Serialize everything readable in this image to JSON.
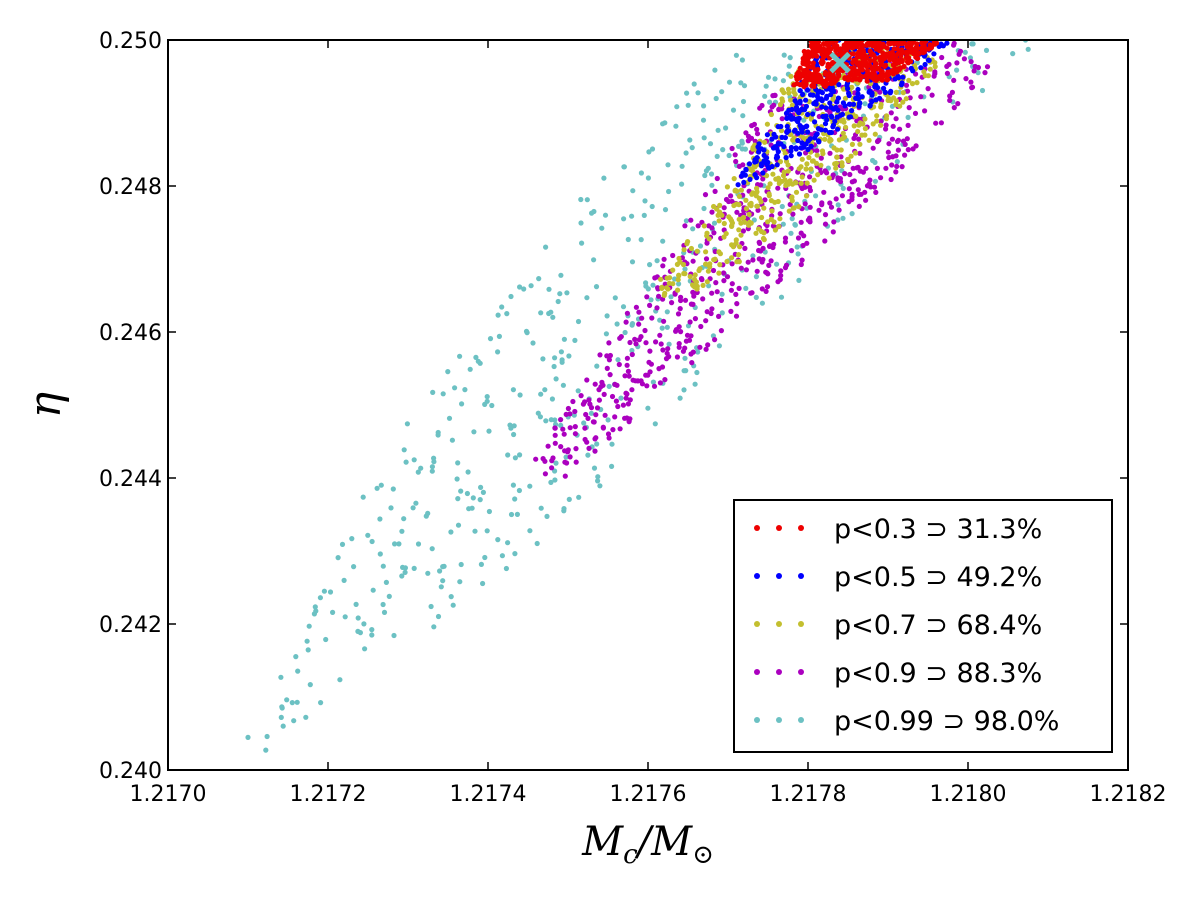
{
  "chart_data": {
    "type": "scatter",
    "title": "",
    "xlabel": "M_c/M_⊙",
    "ylabel": "η",
    "xlabel_parts": {
      "main": "M",
      "sub1": "c",
      "sep": "/M",
      "sub2": "⊙"
    },
    "xlim": [
      1.217,
      1.2182
    ],
    "ylim": [
      0.24,
      0.25
    ],
    "xticks": [
      1.217,
      1.2172,
      1.2174,
      1.2176,
      1.2178,
      1.218,
      1.2182
    ],
    "xtick_labels": [
      "1.2170",
      "1.2172",
      "1.2174",
      "1.2176",
      "1.2178",
      "1.2180",
      "1.2182"
    ],
    "yticks": [
      0.24,
      0.242,
      0.244,
      0.246,
      0.248,
      0.25
    ],
    "ytick_labels": [
      "0.240",
      "0.242",
      "0.244",
      "0.246",
      "0.248",
      "0.250"
    ],
    "grid": false,
    "legend_position": "bottom-right",
    "true_value": {
      "x": 1.21784,
      "y": 0.24969,
      "marker": "x",
      "color": "#6cc5c5"
    },
    "series": [
      {
        "name": "p<0.99",
        "legend_label": "p<0.99 ⊃ 98.0%",
        "percent": 98.0,
        "color": "#6cc1c3",
        "region": {
          "outer": [
            [
              1.2171,
              0.2405
            ],
            [
              1.21728,
              0.2446
            ],
            [
              1.21755,
              0.2483
            ],
            [
              1.21768,
              0.2498
            ],
            [
              1.218,
              0.2501
            ],
            [
              1.21812,
              0.25
            ],
            [
              1.21795,
              0.2488
            ],
            [
              1.21775,
              0.2462
            ],
            [
              1.21752,
              0.2436
            ],
            [
              1.21725,
              0.2412
            ],
            [
              1.2171,
              0.24
            ]
          ]
        },
        "count": 520,
        "seed": 11
      },
      {
        "name": "p<0.9",
        "legend_label": "p<0.9 ⊃ 88.3%",
        "percent": 88.3,
        "color": "#ab00bf",
        "region": {
          "outer": [
            [
              1.21745,
              0.2441
            ],
            [
              1.21762,
              0.2471
            ],
            [
              1.21775,
              0.2493
            ],
            [
              1.21798,
              0.25
            ],
            [
              1.21803,
              0.2496
            ],
            [
              1.21788,
              0.2478
            ],
            [
              1.21768,
              0.2458
            ],
            [
              1.2176,
              0.245
            ],
            [
              1.2175,
              0.244
            ]
          ]
        },
        "count": 650,
        "seed": 23
      },
      {
        "name": "p<0.7",
        "legend_label": "p<0.7 ⊃ 68.4%",
        "percent": 68.4,
        "color": "#c3bf2f",
        "region": {
          "outer": [
            [
              1.2176,
              0.2465
            ],
            [
              1.21772,
              0.2483
            ],
            [
              1.21778,
              0.2496
            ],
            [
              1.21788,
              0.25
            ],
            [
              1.21797,
              0.2497
            ],
            [
              1.21786,
              0.2484
            ],
            [
              1.21772,
              0.247
            ],
            [
              1.21765,
              0.2465
            ]
          ]
        },
        "count": 480,
        "seed": 37
      },
      {
        "name": "p<0.5",
        "legend_label": "p<0.5 ⊃ 49.2%",
        "percent": 49.2,
        "color": "#0000ff",
        "region": {
          "outer": [
            [
              1.2177,
              0.248
            ],
            [
              1.21778,
              0.2492
            ],
            [
              1.21782,
              0.25
            ],
            [
              1.21798,
              0.25
            ],
            [
              1.21792,
              0.2494
            ],
            [
              1.2178,
              0.2485
            ],
            [
              1.21772,
              0.248
            ]
          ]
        },
        "count": 360,
        "seed": 41
      },
      {
        "name": "p<0.3",
        "legend_label": "p<0.3 ⊃ 31.3%",
        "percent": 31.3,
        "color": "#ee0000",
        "region": {
          "outer": [
            [
              1.21778,
              0.24935
            ],
            [
              1.2178,
              0.25
            ],
            [
              1.21797,
              0.25
            ],
            [
              1.2179,
              0.24945
            ],
            [
              1.21782,
              0.24935
            ]
          ]
        },
        "count": 520,
        "seed": 53
      }
    ],
    "legend_order": [
      "p<0.3",
      "p<0.5",
      "p<0.7",
      "p<0.9",
      "p<0.99"
    ]
  }
}
